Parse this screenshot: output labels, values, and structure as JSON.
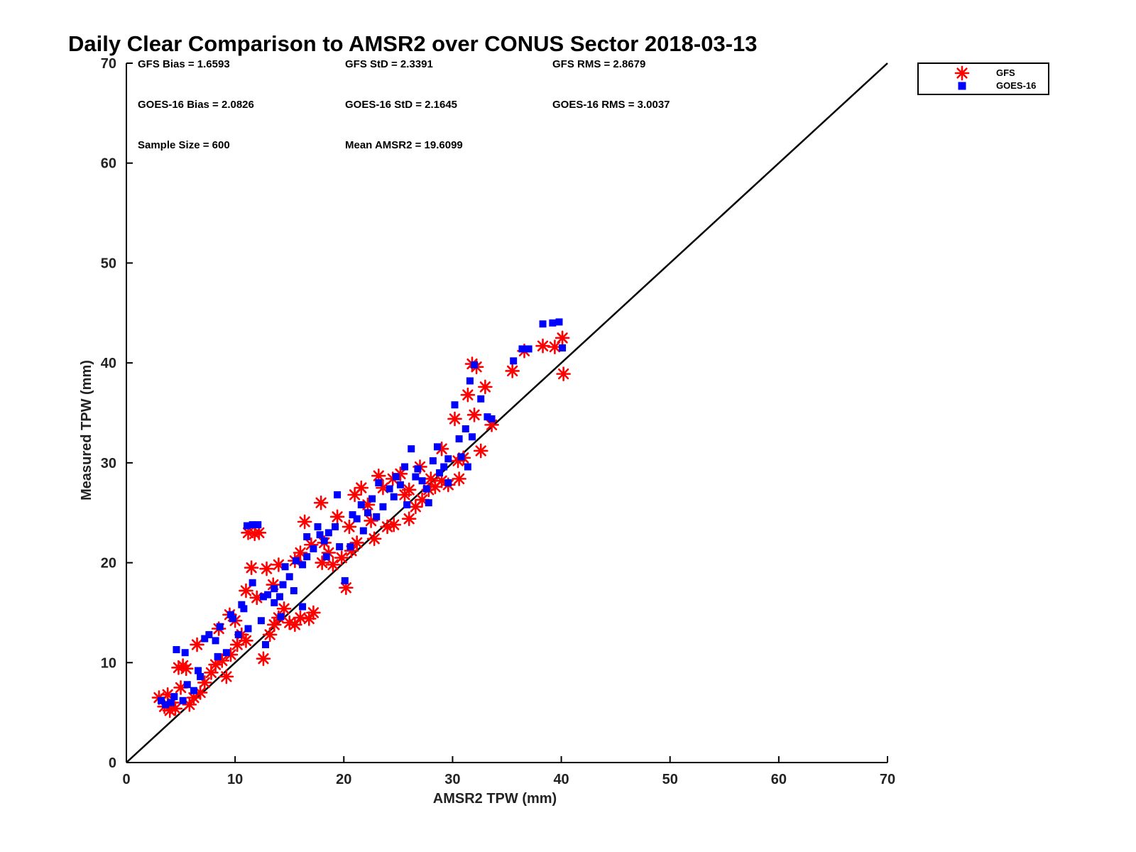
{
  "chart_data": {
    "type": "scatter",
    "title": "Daily Clear Comparison to AMSR2 over CONUS Sector 2018-03-13",
    "xlabel": "AMSR2 TPW (mm)",
    "ylabel": "Measured TPW (mm)",
    "xlim": [
      0,
      70
    ],
    "ylim": [
      0,
      70
    ],
    "xticks": [
      "0",
      "10",
      "20",
      "30",
      "40",
      "50",
      "60",
      "70"
    ],
    "yticks": [
      "0",
      "10",
      "20",
      "30",
      "40",
      "50",
      "60",
      "70"
    ],
    "grid": false,
    "legend_position": "top-right",
    "reference_line": {
      "x": [
        0,
        70
      ],
      "y": [
        0,
        70
      ],
      "color": "#000000"
    },
    "stats": [
      "GFS Bias = 1.6593",
      "GFS StD = 2.3391",
      "GFS RMS = 2.8679",
      "GOES-16 Bias = 2.0826",
      "GOES-16 StD = 2.1645",
      "GOES-16 RMS = 3.0037",
      "Sample Size = 600",
      "Mean AMSR2 = 19.6099"
    ],
    "series": [
      {
        "name": "GFS",
        "marker": "asterisk",
        "color": "#ff0000",
        "points": [
          [
            3,
            6.5
          ],
          [
            3.5,
            5.6
          ],
          [
            4,
            5.2
          ],
          [
            4.2,
            6.0
          ],
          [
            4.5,
            5.4
          ],
          [
            4.8,
            9.5
          ],
          [
            5.2,
            9.7
          ],
          [
            5.5,
            9.4
          ],
          [
            5.8,
            5.8
          ],
          [
            6.2,
            6.5
          ],
          [
            6.8,
            7.0
          ],
          [
            7.2,
            8.0
          ],
          [
            7.8,
            9.0
          ],
          [
            8.2,
            9.8
          ],
          [
            8.8,
            10.2
          ],
          [
            9.2,
            8.6
          ],
          [
            9.6,
            10.8
          ],
          [
            10.2,
            11.8
          ],
          [
            10.6,
            12.8
          ],
          [
            11,
            12.2
          ],
          [
            11.2,
            23.0
          ],
          [
            11.8,
            22.9
          ],
          [
            12.2,
            23.0
          ],
          [
            11.5,
            19.5
          ],
          [
            12.6,
            10.4
          ],
          [
            12.9,
            19.4
          ],
          [
            13.2,
            12.8
          ],
          [
            13.6,
            13.8
          ],
          [
            14,
            14.5
          ],
          [
            14.5,
            15.4
          ],
          [
            15,
            14.0
          ],
          [
            15.5,
            13.8
          ],
          [
            16,
            14.5
          ],
          [
            16.4,
            24.1
          ],
          [
            16.8,
            14.4
          ],
          [
            17.2,
            15.0
          ],
          [
            17.9,
            26.0
          ],
          [
            18.2,
            22.0
          ],
          [
            18.6,
            21.0
          ],
          [
            19,
            19.8
          ],
          [
            19.4,
            24.6
          ],
          [
            19.8,
            20.5
          ],
          [
            20.2,
            17.5
          ],
          [
            20.7,
            21.2
          ],
          [
            21.2,
            22.0
          ],
          [
            21.6,
            27.5
          ],
          [
            22.2,
            25.8
          ],
          [
            22.8,
            22.4
          ],
          [
            23.2,
            28.7
          ],
          [
            23.6,
            27.5
          ],
          [
            24,
            23.6
          ],
          [
            24.6,
            23.8
          ],
          [
            25.2,
            28.9
          ],
          [
            25.6,
            26.8
          ],
          [
            26,
            24.4
          ],
          [
            26.6,
            25.6
          ],
          [
            27.2,
            26.3
          ],
          [
            27.8,
            27.3
          ],
          [
            28.4,
            27.6
          ],
          [
            29,
            28.2
          ],
          [
            29.6,
            27.8
          ],
          [
            30.2,
            34.4
          ],
          [
            30.6,
            28.4
          ],
          [
            31,
            30.5
          ],
          [
            31.4,
            36.8
          ],
          [
            31.8,
            39.9
          ],
          [
            32.2,
            39.6
          ],
          [
            32.6,
            31.2
          ],
          [
            33,
            37.6
          ],
          [
            33.6,
            33.8
          ],
          [
            35.5,
            39.2
          ],
          [
            36.6,
            41.2
          ],
          [
            38.3,
            41.7
          ],
          [
            39.4,
            41.6
          ],
          [
            40.1,
            42.5
          ],
          [
            40.2,
            38.9
          ],
          [
            10,
            14.2
          ],
          [
            12,
            16.5
          ],
          [
            14,
            19.8
          ],
          [
            15.5,
            20.2
          ],
          [
            17,
            21.8
          ],
          [
            18,
            20.0
          ],
          [
            21,
            26.8
          ],
          [
            24.5,
            28.4
          ],
          [
            27,
            29.6
          ],
          [
            29,
            31.4
          ],
          [
            6.5,
            11.8
          ],
          [
            8.5,
            13.4
          ],
          [
            5,
            7.5
          ],
          [
            3.8,
            6.8
          ],
          [
            13.5,
            17.8
          ],
          [
            16,
            21.0
          ],
          [
            22.5,
            24.2
          ],
          [
            26,
            27.3
          ],
          [
            28,
            28.4
          ],
          [
            30.5,
            30.2
          ],
          [
            32,
            34.8
          ],
          [
            20.5,
            23.6
          ],
          [
            9.5,
            14.8
          ],
          [
            11,
            17.2
          ]
        ]
      },
      {
        "name": "GOES-16",
        "marker": "square",
        "color": "#0000ff",
        "points": [
          [
            3.2,
            6.2
          ],
          [
            3.6,
            5.8
          ],
          [
            4.1,
            6.0
          ],
          [
            4.6,
            11.3
          ],
          [
            5.4,
            11.0
          ],
          [
            5.6,
            7.8
          ],
          [
            6.2,
            7.2
          ],
          [
            6.8,
            8.6
          ],
          [
            7.2,
            12.4
          ],
          [
            7.6,
            12.8
          ],
          [
            8.2,
            12.2
          ],
          [
            8.6,
            13.6
          ],
          [
            9.2,
            11.0
          ],
          [
            9.8,
            14.4
          ],
          [
            10.3,
            12.8
          ],
          [
            10.8,
            15.4
          ],
          [
            11.1,
            23.7
          ],
          [
            11.6,
            23.8
          ],
          [
            12.1,
            23.8
          ],
          [
            11.6,
            18.0
          ],
          [
            12.6,
            16.6
          ],
          [
            13.0,
            16.8
          ],
          [
            13.6,
            17.4
          ],
          [
            14.1,
            16.6
          ],
          [
            14.4,
            17.8
          ],
          [
            15.0,
            18.6
          ],
          [
            15.6,
            20.2
          ],
          [
            16.2,
            19.8
          ],
          [
            16.6,
            22.6
          ],
          [
            17.2,
            21.4
          ],
          [
            17.6,
            23.6
          ],
          [
            18.2,
            22.2
          ],
          [
            18.6,
            23.0
          ],
          [
            19.2,
            23.6
          ],
          [
            19.4,
            26.8
          ],
          [
            20.1,
            18.2
          ],
          [
            20.6,
            21.6
          ],
          [
            21.2,
            24.4
          ],
          [
            21.6,
            25.8
          ],
          [
            22.2,
            25.0
          ],
          [
            22.6,
            26.4
          ],
          [
            23.2,
            28.0
          ],
          [
            23.6,
            25.6
          ],
          [
            24.2,
            27.4
          ],
          [
            24.6,
            26.6
          ],
          [
            25.2,
            27.8
          ],
          [
            25.6,
            29.6
          ],
          [
            26.2,
            31.4
          ],
          [
            26.6,
            28.6
          ],
          [
            27.2,
            28.2
          ],
          [
            27.6,
            27.4
          ],
          [
            28.2,
            30.2
          ],
          [
            28.6,
            31.6
          ],
          [
            29.2,
            29.6
          ],
          [
            29.6,
            30.4
          ],
          [
            30.2,
            35.8
          ],
          [
            30.6,
            32.4
          ],
          [
            31.2,
            33.4
          ],
          [
            31.6,
            38.2
          ],
          [
            32.0,
            39.8
          ],
          [
            32.6,
            36.4
          ],
          [
            33.2,
            34.6
          ],
          [
            33.6,
            34.4
          ],
          [
            35.6,
            40.2
          ],
          [
            36.4,
            41.4
          ],
          [
            37.0,
            41.4
          ],
          [
            38.3,
            43.9
          ],
          [
            39.2,
            44.0
          ],
          [
            39.8,
            44.1
          ],
          [
            40.1,
            41.5
          ],
          [
            9.6,
            14.8
          ],
          [
            10.6,
            15.8
          ],
          [
            12.4,
            14.2
          ],
          [
            13.6,
            16.0
          ],
          [
            14.6,
            19.6
          ],
          [
            15.4,
            17.2
          ],
          [
            16.6,
            20.6
          ],
          [
            17.8,
            22.8
          ],
          [
            19.6,
            21.6
          ],
          [
            20.8,
            24.8
          ],
          [
            23.0,
            24.6
          ],
          [
            24.8,
            28.6
          ],
          [
            26.8,
            29.4
          ],
          [
            28.8,
            29.0
          ],
          [
            30.8,
            30.6
          ],
          [
            31.8,
            32.6
          ],
          [
            4.4,
            6.6
          ],
          [
            5.2,
            6.2
          ],
          [
            6.6,
            9.2
          ],
          [
            8.4,
            10.6
          ],
          [
            11.2,
            13.4
          ],
          [
            12.8,
            11.8
          ],
          [
            14.2,
            14.6
          ],
          [
            16.2,
            15.6
          ],
          [
            18.4,
            20.6
          ],
          [
            21.8,
            23.2
          ],
          [
            25.8,
            25.8
          ],
          [
            27.8,
            26.0
          ],
          [
            29.6,
            28.0
          ],
          [
            31.4,
            29.6
          ]
        ]
      }
    ]
  }
}
